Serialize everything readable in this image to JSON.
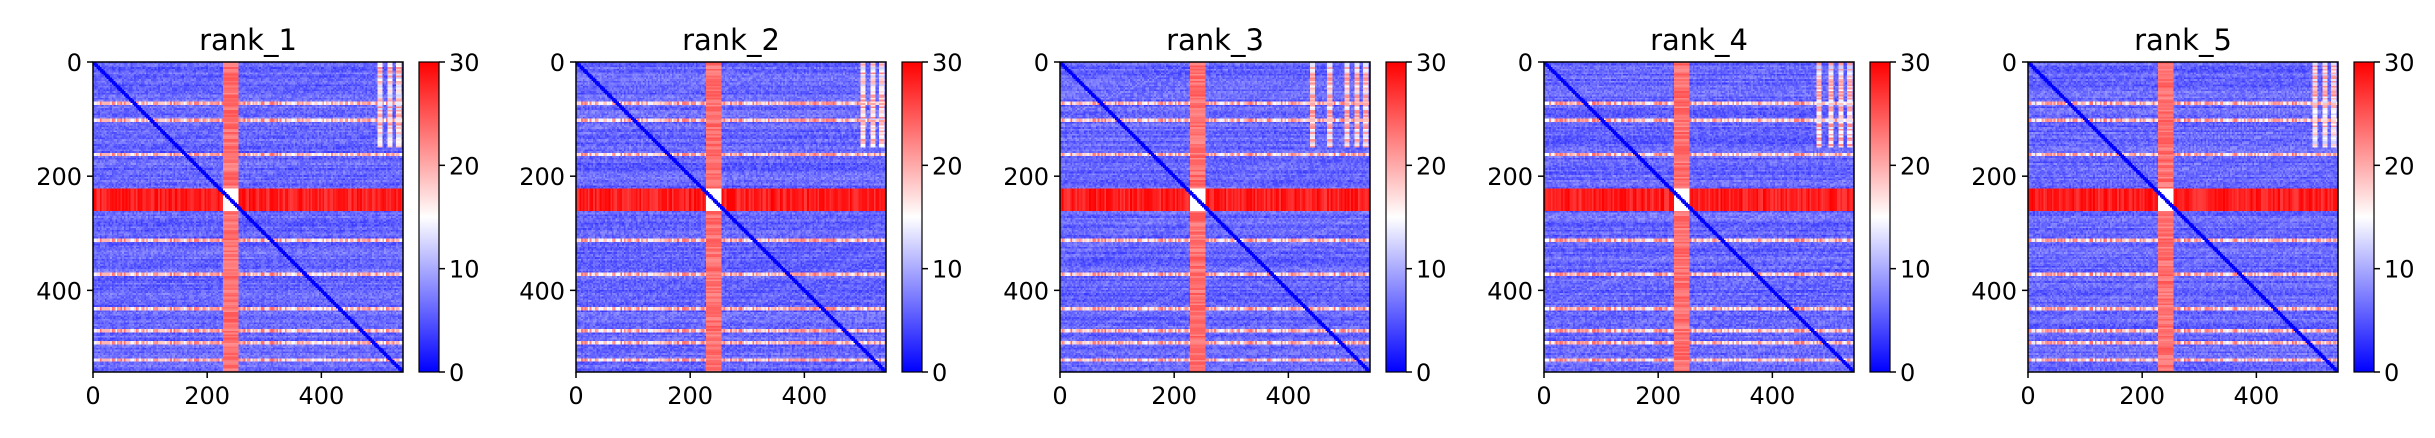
{
  "chart_data": [
    {
      "type": "heatmap",
      "title": "rank_1",
      "xlabel": "",
      "ylabel": "",
      "xticks": [
        "0",
        "200",
        "400"
      ],
      "yticks": [
        "0",
        "200",
        "400"
      ],
      "xlim": [
        0,
        543
      ],
      "ylim": [
        543,
        0
      ],
      "n": 543,
      "colorbar": {
        "min": 0,
        "max": 30,
        "ticks": [
          "0",
          "10",
          "20",
          "30"
        ],
        "colormap": "bwr"
      },
      "diagonal": "low distance along the main diagonal",
      "high_rows": [
        [
          220,
          260
        ]
      ],
      "high_cols": [
        [
          228,
          252
        ]
      ],
      "light_rows": [
        70,
        100,
        160,
        310,
        370,
        430,
        470,
        490,
        520
      ],
      "light_cols": [
        500,
        520,
        535
      ]
    },
    {
      "type": "heatmap",
      "title": "rank_2",
      "xlabel": "",
      "ylabel": "",
      "xticks": [
        "0",
        "200",
        "400"
      ],
      "yticks": [
        "0",
        "200",
        "400"
      ],
      "xlim": [
        0,
        543
      ],
      "ylim": [
        543,
        0
      ],
      "n": 543,
      "colorbar": {
        "min": 0,
        "max": 30,
        "ticks": [
          "0",
          "10",
          "20",
          "30"
        ],
        "colormap": "bwr"
      },
      "diagonal": "low distance along the main diagonal",
      "high_rows": [
        [
          220,
          260
        ]
      ],
      "high_cols": [
        [
          228,
          252
        ]
      ],
      "light_rows": [
        70,
        100,
        160,
        310,
        370,
        430,
        470,
        490,
        520
      ],
      "light_cols": [
        500,
        520,
        535
      ]
    },
    {
      "type": "heatmap",
      "title": "rank_3",
      "xlabel": "",
      "ylabel": "",
      "xticks": [
        "0",
        "200",
        "400"
      ],
      "yticks": [
        "0",
        "200",
        "400"
      ],
      "xlim": [
        0,
        543
      ],
      "ylim": [
        543,
        0
      ],
      "n": 543,
      "colorbar": {
        "min": 0,
        "max": 30,
        "ticks": [
          "0",
          "10",
          "20",
          "30"
        ],
        "colormap": "bwr"
      },
      "diagonal": "low distance along the main diagonal",
      "high_rows": [
        [
          220,
          260
        ]
      ],
      "high_cols": [
        [
          228,
          252
        ]
      ],
      "light_rows": [
        70,
        100,
        160,
        310,
        370,
        430,
        470,
        490,
        520
      ],
      "light_cols": [
        440,
        470,
        500,
        520,
        535
      ]
    },
    {
      "type": "heatmap",
      "title": "rank_4",
      "xlabel": "",
      "ylabel": "",
      "xticks": [
        "0",
        "200",
        "400"
      ],
      "yticks": [
        "0",
        "200",
        "400"
      ],
      "xlim": [
        0,
        543
      ],
      "ylim": [
        543,
        0
      ],
      "n": 543,
      "colorbar": {
        "min": 0,
        "max": 30,
        "ticks": [
          "0",
          "10",
          "20",
          "30"
        ],
        "colormap": "bwr"
      },
      "diagonal": "low distance along the main diagonal",
      "high_rows": [
        [
          220,
          260
        ]
      ],
      "high_cols": [
        [
          228,
          252
        ]
      ],
      "light_rows": [
        70,
        100,
        160,
        310,
        370,
        430,
        470,
        490,
        520
      ],
      "light_cols": [
        480,
        500,
        520,
        535
      ]
    },
    {
      "type": "heatmap",
      "title": "rank_5",
      "xlabel": "",
      "ylabel": "",
      "xticks": [
        "0",
        "200",
        "400"
      ],
      "yticks": [
        "0",
        "200",
        "400"
      ],
      "xlim": [
        0,
        543
      ],
      "ylim": [
        543,
        0
      ],
      "n": 543,
      "colorbar": {
        "min": 0,
        "max": 30,
        "ticks": [
          "0",
          "10",
          "20",
          "30"
        ],
        "colormap": "bwr"
      },
      "diagonal": "low distance along the main diagonal",
      "high_rows": [
        [
          220,
          260
        ]
      ],
      "high_cols": [
        [
          228,
          252
        ]
      ],
      "light_rows": [
        70,
        100,
        160,
        310,
        370,
        430,
        470,
        490,
        520
      ],
      "light_cols": [
        500,
        520,
        535
      ]
    }
  ]
}
